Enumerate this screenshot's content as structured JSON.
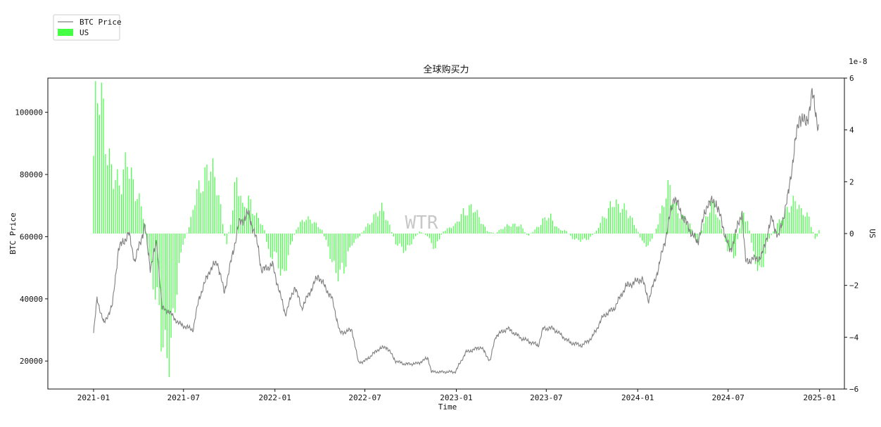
{
  "chart_data": {
    "type": "bar+line",
    "title": "全球购买力",
    "xlabel": "Time",
    "ylabel_left": "BTC Price",
    "ylabel_right": "US",
    "right_axis_multiplier": "1e-8",
    "watermark": "WTR",
    "x_range": [
      "2020-10-01",
      "2025-02-20"
    ],
    "left_ylim": [
      11000,
      111000
    ],
    "right_ylim": [
      -6,
      6
    ],
    "x_ticks": [
      "2021-01",
      "2021-07",
      "2022-01",
      "2022-07",
      "2023-01",
      "2023-07",
      "2024-01",
      "2024-07",
      "2025-01"
    ],
    "left_ticks": [
      20000,
      40000,
      60000,
      80000,
      100000
    ],
    "right_ticks": [
      -6,
      -4,
      -2,
      0,
      2,
      4,
      6
    ],
    "legend": {
      "placement": "top-left",
      "entries": [
        {
          "label": "BTC Price",
          "kind": "line",
          "color": "#808080"
        },
        {
          "label": "US",
          "kind": "bar",
          "color": "#44ff44"
        }
      ]
    },
    "series": [
      {
        "name": "BTC Price",
        "axis": "left",
        "color": "#808080",
        "points": [
          [
            "2021-01-01",
            29000
          ],
          [
            "2021-01-08",
            40000
          ],
          [
            "2021-01-22",
            32000
          ],
          [
            "2021-02-08",
            38000
          ],
          [
            "2021-02-20",
            56000
          ],
          [
            "2021-03-13",
            61000
          ],
          [
            "2021-03-25",
            52000
          ],
          [
            "2021-04-14",
            63500
          ],
          [
            "2021-04-25",
            50000
          ],
          [
            "2021-05-08",
            58000
          ],
          [
            "2021-05-19",
            37000
          ],
          [
            "2021-06-01",
            36000
          ],
          [
            "2021-06-22",
            32000
          ],
          [
            "2021-07-20",
            30000
          ],
          [
            "2021-08-01",
            40000
          ],
          [
            "2021-08-22",
            49000
          ],
          [
            "2021-09-07",
            52000
          ],
          [
            "2021-09-21",
            42000
          ],
          [
            "2021-10-10",
            56000
          ],
          [
            "2021-10-20",
            64000
          ],
          [
            "2021-11-09",
            67500
          ],
          [
            "2021-11-28",
            57000
          ],
          [
            "2021-12-05",
            49000
          ],
          [
            "2021-12-27",
            51000
          ],
          [
            "2022-01-22",
            35000
          ],
          [
            "2022-02-10",
            44000
          ],
          [
            "2022-02-24",
            37000
          ],
          [
            "2022-03-29",
            47500
          ],
          [
            "2022-04-26",
            40000
          ],
          [
            "2022-05-12",
            29000
          ],
          [
            "2022-06-05",
            30000
          ],
          [
            "2022-06-18",
            19500
          ],
          [
            "2022-07-01",
            20000
          ],
          [
            "2022-07-30",
            24000
          ],
          [
            "2022-08-14",
            24500
          ],
          [
            "2022-09-01",
            20000
          ],
          [
            "2022-09-20",
            19000
          ],
          [
            "2022-10-15",
            19200
          ],
          [
            "2022-11-05",
            21000
          ],
          [
            "2022-11-12",
            16500
          ],
          [
            "2022-12-30",
            16500
          ],
          [
            "2023-01-20",
            22800
          ],
          [
            "2023-02-20",
            24500
          ],
          [
            "2023-03-10",
            20000
          ],
          [
            "2023-03-21",
            28000
          ],
          [
            "2023-04-14",
            30500
          ],
          [
            "2023-05-10",
            27500
          ],
          [
            "2023-06-15",
            25000
          ],
          [
            "2023-06-25",
            30500
          ],
          [
            "2023-07-15",
            30500
          ],
          [
            "2023-08-17",
            26000
          ],
          [
            "2023-09-11",
            25000
          ],
          [
            "2023-10-01",
            27500
          ],
          [
            "2023-10-24",
            34500
          ],
          [
            "2023-11-15",
            37000
          ],
          [
            "2023-12-08",
            44000
          ],
          [
            "2024-01-10",
            46500
          ],
          [
            "2024-01-23",
            39500
          ],
          [
            "2024-02-12",
            50000
          ],
          [
            "2024-02-28",
            61000
          ],
          [
            "2024-03-14",
            73000
          ],
          [
            "2024-04-02",
            66000
          ],
          [
            "2024-04-30",
            58000
          ],
          [
            "2024-05-21",
            71000
          ],
          [
            "2024-06-07",
            71000
          ],
          [
            "2024-07-05",
            55000
          ],
          [
            "2024-07-29",
            68000
          ],
          [
            "2024-08-05",
            52000
          ],
          [
            "2024-09-06",
            53500
          ],
          [
            "2024-09-27",
            66000
          ],
          [
            "2024-10-10",
            59500
          ],
          [
            "2024-10-29",
            72500
          ],
          [
            "2024-11-13",
            90000
          ],
          [
            "2024-11-22",
            99000
          ],
          [
            "2024-12-05",
            96000
          ],
          [
            "2024-12-17",
            106000
          ],
          [
            "2024-12-30",
            95000
          ]
        ]
      },
      {
        "name": "US",
        "axis": "right",
        "color": "#44ff44",
        "points": [
          [
            "2021-01-01",
            3.0
          ],
          [
            "2021-01-05",
            4.6
          ],
          [
            "2021-01-15",
            5.1
          ],
          [
            "2021-01-26",
            3.5
          ],
          [
            "2021-02-10",
            2.5
          ],
          [
            "2021-02-25",
            1.6
          ],
          [
            "2021-03-10",
            2.8
          ],
          [
            "2021-03-25",
            1.9
          ],
          [
            "2021-04-05",
            1.2
          ],
          [
            "2021-04-15",
            0.3
          ],
          [
            "2021-04-25",
            -1.2
          ],
          [
            "2021-05-05",
            -2.4
          ],
          [
            "2021-05-18",
            -4.2
          ],
          [
            "2021-05-25",
            -4.6
          ],
          [
            "2021-06-05",
            -4.0
          ],
          [
            "2021-06-15",
            -2.5
          ],
          [
            "2021-06-30",
            -0.4
          ],
          [
            "2021-07-15",
            0.4
          ],
          [
            "2021-07-25",
            1.3
          ],
          [
            "2021-08-10",
            2.2
          ],
          [
            "2021-08-20",
            2.9
          ],
          [
            "2021-09-01",
            2.1
          ],
          [
            "2021-09-15",
            0.8
          ],
          [
            "2021-09-25",
            -0.5
          ],
          [
            "2021-10-05",
            0.6
          ],
          [
            "2021-10-15",
            2.1
          ],
          [
            "2021-10-28",
            0.9
          ],
          [
            "2021-11-10",
            1.4
          ],
          [
            "2021-11-25",
            0.7
          ],
          [
            "2021-12-10",
            0.2
          ],
          [
            "2021-12-20",
            -0.8
          ],
          [
            "2022-01-05",
            -1.0
          ],
          [
            "2022-01-15",
            -1.8
          ],
          [
            "2022-01-30",
            -0.6
          ],
          [
            "2022-02-15",
            0.3
          ],
          [
            "2022-03-01",
            0.6
          ],
          [
            "2022-03-20",
            0.4
          ],
          [
            "2022-04-05",
            0.2
          ],
          [
            "2022-04-20",
            -0.7
          ],
          [
            "2022-05-05",
            -1.4
          ],
          [
            "2022-05-20",
            -1.5
          ],
          [
            "2022-06-05",
            -0.4
          ],
          [
            "2022-06-20",
            -0.1
          ],
          [
            "2022-07-01",
            0.2
          ],
          [
            "2022-07-20",
            0.7
          ],
          [
            "2022-08-05",
            0.9
          ],
          [
            "2022-08-20",
            0.3
          ],
          [
            "2022-09-01",
            -0.4
          ],
          [
            "2022-09-20",
            -0.6
          ],
          [
            "2022-10-05",
            -0.3
          ],
          [
            "2022-10-20",
            0.1
          ],
          [
            "2022-11-05",
            -0.1
          ],
          [
            "2022-11-20",
            -0.6
          ],
          [
            "2022-12-05",
            0.1
          ],
          [
            "2022-12-30",
            0.3
          ],
          [
            "2023-01-15",
            0.9
          ],
          [
            "2023-02-01",
            1.0
          ],
          [
            "2023-02-15",
            0.6
          ],
          [
            "2023-03-05",
            0.1
          ],
          [
            "2023-03-20",
            0.0
          ],
          [
            "2023-04-05",
            0.2
          ],
          [
            "2023-04-20",
            0.4
          ],
          [
            "2023-05-10",
            0.3
          ],
          [
            "2023-05-25",
            -0.1
          ],
          [
            "2023-06-10",
            0.2
          ],
          [
            "2023-06-25",
            0.5
          ],
          [
            "2023-07-10",
            0.6
          ],
          [
            "2023-07-25",
            0.2
          ],
          [
            "2023-08-10",
            0.1
          ],
          [
            "2023-08-25",
            -0.2
          ],
          [
            "2023-09-10",
            -0.3
          ],
          [
            "2023-09-25",
            -0.2
          ],
          [
            "2023-10-10",
            0.1
          ],
          [
            "2023-10-25",
            0.7
          ],
          [
            "2023-11-10",
            1.2
          ],
          [
            "2023-11-25",
            0.9
          ],
          [
            "2023-12-10",
            1.0
          ],
          [
            "2023-12-25",
            0.4
          ],
          [
            "2024-01-10",
            -0.3
          ],
          [
            "2024-01-25",
            -0.5
          ],
          [
            "2024-02-10",
            0.4
          ],
          [
            "2024-02-25",
            1.2
          ],
          [
            "2024-03-05",
            1.8
          ],
          [
            "2024-03-15",
            1.2
          ],
          [
            "2024-04-01",
            0.6
          ],
          [
            "2024-04-15",
            0.3
          ],
          [
            "2024-04-30",
            -0.3
          ],
          [
            "2024-05-15",
            0.5
          ],
          [
            "2024-06-01",
            1.1
          ],
          [
            "2024-06-15",
            0.4
          ],
          [
            "2024-06-30",
            -0.6
          ],
          [
            "2024-07-15",
            -0.8
          ],
          [
            "2024-07-30",
            0.9
          ],
          [
            "2024-08-10",
            0.5
          ],
          [
            "2024-08-20",
            -0.8
          ],
          [
            "2024-09-05",
            -1.4
          ],
          [
            "2024-09-20",
            -0.3
          ],
          [
            "2024-10-05",
            0.3
          ],
          [
            "2024-10-20",
            0.6
          ],
          [
            "2024-11-05",
            1.2
          ],
          [
            "2024-11-15",
            1.5
          ],
          [
            "2024-11-25",
            0.8
          ],
          [
            "2024-12-10",
            0.6
          ],
          [
            "2024-12-25",
            -0.3
          ],
          [
            "2024-12-31",
            0.2
          ]
        ]
      }
    ]
  }
}
